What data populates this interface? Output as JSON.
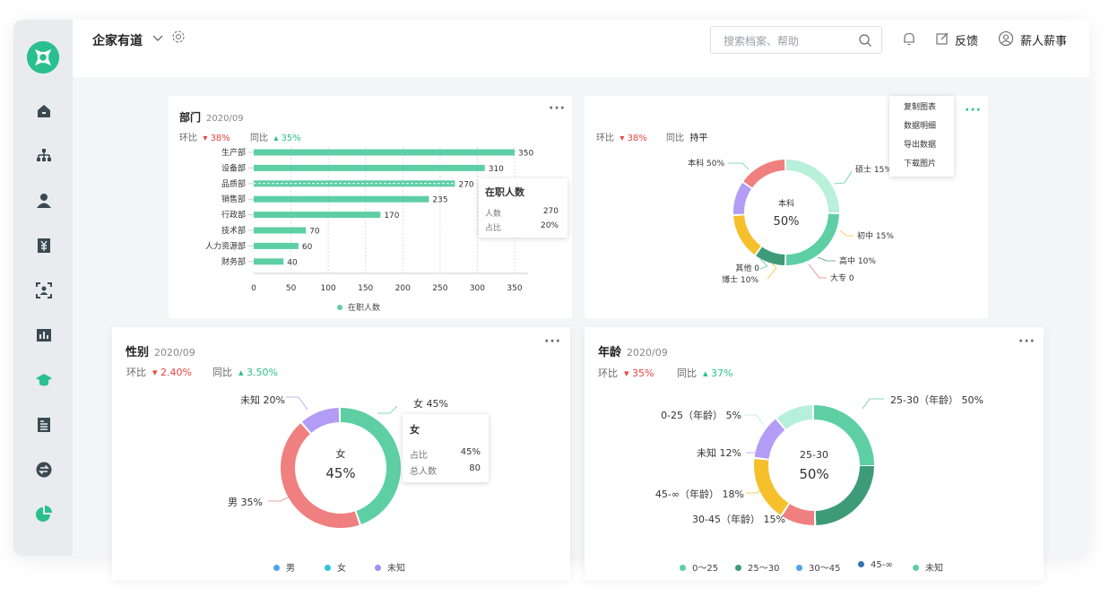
{
  "app": {
    "brand": "企家有道",
    "search_placeholder": "搜索档案、帮助",
    "feedback": "反馈",
    "user": "薪人薪事"
  },
  "sidebar": [
    {
      "name": "home-icon"
    },
    {
      "name": "org-chart-icon"
    },
    {
      "name": "person-icon"
    },
    {
      "name": "salary-icon"
    },
    {
      "name": "face-scan-icon"
    },
    {
      "name": "bar-chart-icon"
    },
    {
      "name": "graduation-cap-icon"
    },
    {
      "name": "document-icon"
    },
    {
      "name": "exchange-icon"
    },
    {
      "name": "pie-chart-icon"
    }
  ],
  "colors": {
    "accent": "#2bbf8e",
    "up": "#2bbf8e",
    "down": "#e8453c"
  },
  "dept": {
    "title": "部门",
    "date": "2020/09",
    "mom_label": "环比",
    "mom": "38%",
    "yoy_label": "同比",
    "yoy": "35%",
    "legend": "在职人数",
    "tooltip": {
      "title": "在职人数",
      "k1": "人数",
      "v1": "270",
      "k2": "占比",
      "v2": "20%"
    }
  },
  "edu": {
    "mom_label": "环比",
    "mom": "38%",
    "yoy_label": "同比",
    "yoy": "持平",
    "center_label": "本科",
    "center_value": "50%",
    "menu": [
      "复制图表",
      "数据明细",
      "导出数据",
      "下载图片"
    ]
  },
  "gender": {
    "title": "性别",
    "date": "2020/09",
    "mom_label": "环比",
    "mom": "2.40%",
    "yoy_label": "同比",
    "yoy": "3.50%",
    "center_label": "女",
    "center_value": "45%",
    "tooltip": {
      "title": "女",
      "k1": "占比",
      "v1": "45%",
      "k2": "总人数",
      "v2": "80"
    }
  },
  "age": {
    "title": "年龄",
    "date": "2020/09",
    "mom_label": "环比",
    "mom": "35%",
    "yoy_label": "同比",
    "yoy": "37%",
    "center_label": "25-30",
    "center_value": "50%"
  },
  "chart_data": [
    {
      "type": "bar",
      "orientation": "horizontal",
      "title": "部门",
      "categories": [
        "生产部",
        "设备部",
        "品质部",
        "销售部",
        "行政部",
        "技术部",
        "人力资源部",
        "财务部"
      ],
      "series": [
        {
          "name": "在职人数",
          "values": [
            350,
            310,
            270,
            235,
            170,
            70,
            60,
            40
          ]
        }
      ],
      "xlim": [
        0,
        350
      ],
      "xticks": [
        0,
        50,
        100,
        150,
        200,
        250,
        300,
        350
      ],
      "legend": "bottom",
      "grid": true
    },
    {
      "type": "pie",
      "donut": true,
      "slices": [
        {
          "label": "本科 50%",
          "value": 50,
          "color": "#5ecfa5"
        },
        {
          "label": "大专 0",
          "value": 0,
          "color": "#f07f7f"
        },
        {
          "label": "高中 10%",
          "value": 10,
          "color": "#3e9b7a"
        },
        {
          "label": "初中 15%",
          "value": 15,
          "color": "#f5c02c"
        },
        {
          "label": "博士 10%",
          "value": 10,
          "color": "#b39cf5"
        },
        {
          "label": "其他 0",
          "value": 0,
          "color": "#7dc7a9"
        },
        {
          "label": "硕士 15%",
          "value": 15,
          "color": "#f07f7f"
        }
      ]
    },
    {
      "type": "pie",
      "donut": true,
      "title": "性别",
      "slices": [
        {
          "label": "女 45%",
          "value": 45,
          "color": "#5ecfa5"
        },
        {
          "label": "男 35%",
          "value": 35,
          "color": "#f07f7f"
        },
        {
          "label": "未知 20%",
          "value": 20,
          "color": "#b39cf5"
        }
      ],
      "legend": [
        {
          "name": "男",
          "color": "#4ea3ec"
        },
        {
          "name": "女",
          "color": "#2ec4d9"
        },
        {
          "name": "未知",
          "color": "#a48cf0"
        }
      ]
    },
    {
      "type": "pie",
      "donut": true,
      "title": "年龄",
      "slices": [
        {
          "label": "25-30（年龄） 50%",
          "value": 50,
          "color": "#5ecfa5"
        },
        {
          "label": "30-45（年龄） 15%",
          "value": 15,
          "color": "#f07f7f"
        },
        {
          "label": "45-∞（年龄） 18%",
          "value": 18,
          "color": "#f5c02c"
        },
        {
          "label": "未知 12%",
          "value": 12,
          "color": "#b39cf5"
        },
        {
          "label": "0-25（年龄） 5%",
          "value": 5,
          "color": "#b6f0dc"
        }
      ],
      "legend": [
        {
          "name": "0～25",
          "color": "#5ecfa5"
        },
        {
          "name": "25～30",
          "color": "#3e9b7a"
        },
        {
          "name": "30～45",
          "color": "#4ea3ec"
        },
        {
          "name": "45-∞",
          "color": "#2f73b8"
        },
        {
          "name": "未知",
          "color": "#5ecfa5"
        }
      ]
    }
  ]
}
